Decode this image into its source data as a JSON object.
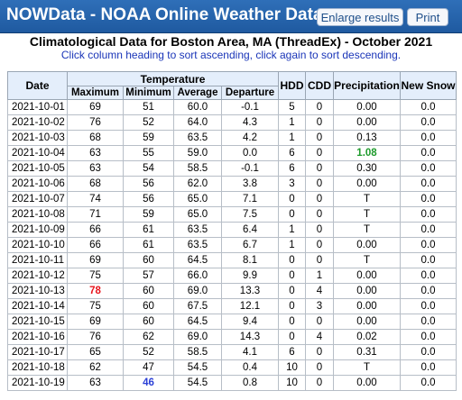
{
  "app": {
    "title": "NOWData - NOAA Online Weather Data",
    "enlarge_label": "Enlarge results",
    "print_label": "Print"
  },
  "report": {
    "heading": "Climatological Data for Boston Area, MA (ThreadEx) - October 2021",
    "hint": "Click column heading to sort ascending, click again to sort descending."
  },
  "table": {
    "headers": {
      "date": "Date",
      "temperature": "Temperature",
      "maximum": "Maximum",
      "minimum": "Minimum",
      "average": "Average",
      "departure": "Departure",
      "hdd": "HDD",
      "cdd": "CDD",
      "precipitation": "Precipitation",
      "new_snow": "New Snow"
    },
    "rows": [
      {
        "date": "2021-10-01",
        "max": "69",
        "min": "51",
        "avg": "60.0",
        "dep": "-0.1",
        "hdd": "5",
        "cdd": "0",
        "precip": "0.00",
        "snow": "0.0"
      },
      {
        "date": "2021-10-02",
        "max": "76",
        "min": "52",
        "avg": "64.0",
        "dep": "4.3",
        "hdd": "1",
        "cdd": "0",
        "precip": "0.00",
        "snow": "0.0"
      },
      {
        "date": "2021-10-03",
        "max": "68",
        "min": "59",
        "avg": "63.5",
        "dep": "4.2",
        "hdd": "1",
        "cdd": "0",
        "precip": "0.13",
        "snow": "0.0"
      },
      {
        "date": "2021-10-04",
        "max": "63",
        "min": "55",
        "avg": "59.0",
        "dep": "0.0",
        "hdd": "6",
        "cdd": "0",
        "precip": "1.08",
        "snow": "0.0"
      },
      {
        "date": "2021-10-05",
        "max": "63",
        "min": "54",
        "avg": "58.5",
        "dep": "-0.1",
        "hdd": "6",
        "cdd": "0",
        "precip": "0.30",
        "snow": "0.0"
      },
      {
        "date": "2021-10-06",
        "max": "68",
        "min": "56",
        "avg": "62.0",
        "dep": "3.8",
        "hdd": "3",
        "cdd": "0",
        "precip": "0.00",
        "snow": "0.0"
      },
      {
        "date": "2021-10-07",
        "max": "74",
        "min": "56",
        "avg": "65.0",
        "dep": "7.1",
        "hdd": "0",
        "cdd": "0",
        "precip": "T",
        "snow": "0.0"
      },
      {
        "date": "2021-10-08",
        "max": "71",
        "min": "59",
        "avg": "65.0",
        "dep": "7.5",
        "hdd": "0",
        "cdd": "0",
        "precip": "T",
        "snow": "0.0"
      },
      {
        "date": "2021-10-09",
        "max": "66",
        "min": "61",
        "avg": "63.5",
        "dep": "6.4",
        "hdd": "1",
        "cdd": "0",
        "precip": "T",
        "snow": "0.0"
      },
      {
        "date": "2021-10-10",
        "max": "66",
        "min": "61",
        "avg": "63.5",
        "dep": "6.7",
        "hdd": "1",
        "cdd": "0",
        "precip": "0.00",
        "snow": "0.0"
      },
      {
        "date": "2021-10-11",
        "max": "69",
        "min": "60",
        "avg": "64.5",
        "dep": "8.1",
        "hdd": "0",
        "cdd": "0",
        "precip": "T",
        "snow": "0.0"
      },
      {
        "date": "2021-10-12",
        "max": "75",
        "min": "57",
        "avg": "66.0",
        "dep": "9.9",
        "hdd": "0",
        "cdd": "1",
        "precip": "0.00",
        "snow": "0.0"
      },
      {
        "date": "2021-10-13",
        "max": "78",
        "min": "60",
        "avg": "69.0",
        "dep": "13.3",
        "hdd": "0",
        "cdd": "4",
        "precip": "0.00",
        "snow": "0.0"
      },
      {
        "date": "2021-10-14",
        "max": "75",
        "min": "60",
        "avg": "67.5",
        "dep": "12.1",
        "hdd": "0",
        "cdd": "3",
        "precip": "0.00",
        "snow": "0.0"
      },
      {
        "date": "2021-10-15",
        "max": "69",
        "min": "60",
        "avg": "64.5",
        "dep": "9.4",
        "hdd": "0",
        "cdd": "0",
        "precip": "0.00",
        "snow": "0.0"
      },
      {
        "date": "2021-10-16",
        "max": "76",
        "min": "62",
        "avg": "69.0",
        "dep": "14.3",
        "hdd": "0",
        "cdd": "4",
        "precip": "0.02",
        "snow": "0.0"
      },
      {
        "date": "2021-10-17",
        "max": "65",
        "min": "52",
        "avg": "58.5",
        "dep": "4.1",
        "hdd": "6",
        "cdd": "0",
        "precip": "0.31",
        "snow": "0.0"
      },
      {
        "date": "2021-10-18",
        "max": "62",
        "min": "47",
        "avg": "54.5",
        "dep": "0.4",
        "hdd": "10",
        "cdd": "0",
        "precip": "T",
        "snow": "0.0"
      },
      {
        "date": "2021-10-19",
        "max": "63",
        "min": "46",
        "avg": "54.5",
        "dep": "0.8",
        "hdd": "10",
        "cdd": "0",
        "precip": "0.00",
        "snow": "0.0"
      }
    ],
    "highlights": {
      "max_high_color": "#e8141c",
      "min_low_color": "#2a3fd6",
      "precip_high_color": "#1d9a2b"
    }
  }
}
